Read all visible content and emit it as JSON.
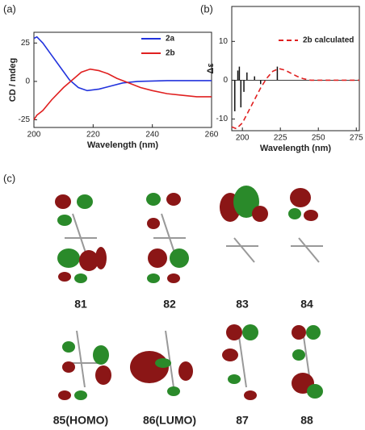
{
  "chart_data": [
    {
      "type": "line",
      "xlabel": "Wavelength (nm)",
      "ylabel": "CD / mdeg",
      "xlim": [
        200,
        260
      ],
      "xticks": [
        200,
        220,
        240,
        260
      ],
      "ylim": [
        -30,
        32
      ],
      "yticks": [
        -25,
        0,
        25
      ],
      "series": [
        {
          "name": "2a",
          "color": "#2233dd",
          "x": [
            200,
            201,
            203,
            206,
            209,
            212,
            215,
            218,
            222,
            226,
            230,
            235,
            245,
            260
          ],
          "values": [
            28,
            29,
            25,
            17,
            9,
            1,
            -4,
            -6,
            -5,
            -3,
            -1,
            0,
            0.5,
            0.5
          ]
        },
        {
          "name": "2b",
          "color": "#e02020",
          "x": [
            200,
            201,
            203,
            206,
            210,
            213,
            216,
            219,
            222,
            225,
            228,
            232,
            236,
            240,
            245,
            250,
            255,
            260
          ],
          "values": [
            -25,
            -22,
            -19,
            -12,
            -4,
            1,
            6,
            8,
            7,
            5,
            2,
            -1,
            -4,
            -6,
            -8,
            -9,
            -10,
            -10
          ]
        }
      ]
    },
    {
      "type": "line",
      "xlabel": "Wavelength (nm)",
      "ylabel": "Δε",
      "xlim": [
        193,
        277
      ],
      "xticks": [
        200,
        225,
        250,
        275
      ],
      "ylim": [
        -13,
        19
      ],
      "yticks": [
        -10,
        0,
        10
      ],
      "series": [
        {
          "name": "2b calculated",
          "color": "#e02020",
          "dashed": true,
          "x": [
            193,
            196,
            200,
            204,
            208,
            212,
            216,
            220,
            224,
            228,
            232,
            236,
            240,
            245,
            250,
            260,
            277
          ],
          "values": [
            -12,
            -12.5,
            -11,
            -8,
            -5,
            -2,
            0.5,
            2.3,
            3,
            2.6,
            1.8,
            1,
            0.4,
            0,
            0,
            0,
            0
          ]
        }
      ],
      "sticks": {
        "color": "#111",
        "x": [
          195,
          197,
          198,
          199,
          201,
          203,
          208,
          212,
          223
        ],
        "values": [
          -8,
          2.5,
          3.5,
          -7,
          -3,
          2,
          1,
          -1,
          3.5
        ]
      }
    }
  ],
  "panel_labels": [
    "(a)",
    "(b)",
    "(c)"
  ],
  "orbitals": [
    {
      "label": "81",
      "color": "#111"
    },
    {
      "label": "82",
      "color": "#111"
    },
    {
      "label": "83",
      "color": "#111"
    },
    {
      "label": "84",
      "color": "#111"
    },
    {
      "label": "85(HOMO)",
      "color": "#111"
    },
    {
      "label": "86(LUMO)",
      "color": "#e02020"
    },
    {
      "label": "87",
      "color": "#e02020"
    },
    {
      "label": "88",
      "color": "#e02020"
    }
  ]
}
